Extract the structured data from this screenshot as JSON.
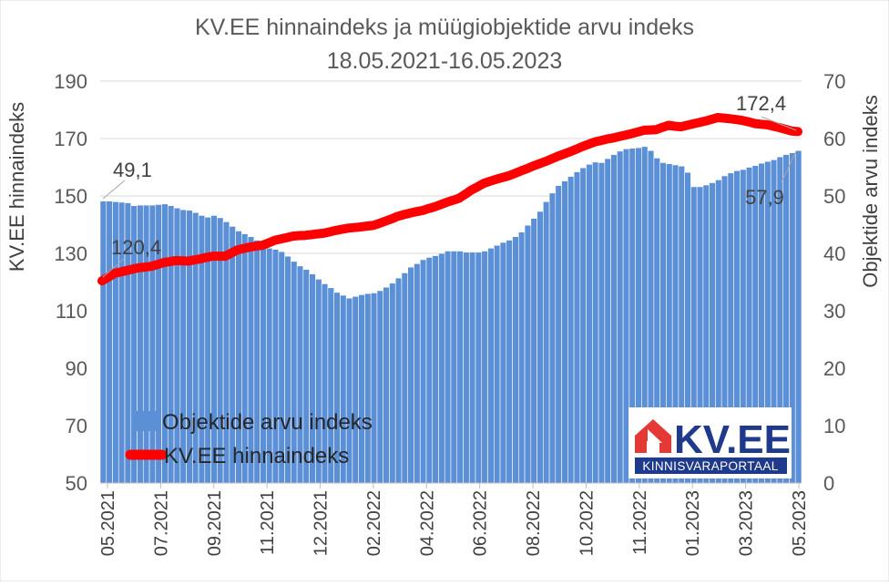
{
  "chart_data": {
    "type": "bar+line",
    "title": "KV.EE hinnaindeks ja müügiobjektide arvu indeks",
    "subtitle": "18.05.2021-16.05.2023",
    "ylabel_left": "KV.EE hinnaindeks",
    "ylabel_right": "Objektide arvu indeks",
    "ylim_left": [
      50,
      190
    ],
    "ylim_right": [
      0,
      70
    ],
    "yticks_left": [
      "50",
      "70",
      "90",
      "110",
      "130",
      "150",
      "170",
      "190"
    ],
    "yticks_right": [
      "0",
      "10",
      "20",
      "30",
      "40",
      "50",
      "60",
      "70"
    ],
    "x_labels": [
      "05.2021",
      "07.2021",
      "09.2021",
      "11.2021",
      "12.2021",
      "02.2022",
      "04.2022",
      "06.2022",
      "08.2022",
      "10.2022",
      "11.2022",
      "01.2023",
      "03.2023",
      "05.2023"
    ],
    "legend": {
      "position": "bottom-left",
      "bars_label": "Objektide arvu indeks",
      "line_label": "KV.EE hinnaindeks"
    },
    "colors": {
      "bars": "#5b8fd6",
      "bar_edge": "#ffffff",
      "line": "#ff0000",
      "grid": "#d9d9d9"
    },
    "annotations": {
      "bars_start": "49,1",
      "line_start": "120,4",
      "line_end": "172,4",
      "bars_end": "57,9"
    },
    "series": [
      {
        "name": "Objektide arvu indeks",
        "axis": "right",
        "type": "bar",
        "values": [
          49.1,
          49.1,
          49.0,
          48.9,
          48.8,
          48.3,
          48.4,
          48.4,
          48.4,
          48.5,
          48.6,
          48.3,
          47.9,
          47.6,
          47.5,
          47.1,
          46.6,
          46.3,
          46.6,
          46.2,
          45.5,
          44.7,
          43.9,
          43.4,
          42.9,
          42.3,
          41.6,
          40.9,
          40.7,
          40.3,
          39.5,
          38.6,
          37.8,
          37.2,
          36.4,
          35.5,
          34.7,
          34.0,
          33.2,
          32.7,
          32.2,
          32.5,
          32.8,
          33.0,
          33.1,
          33.5,
          34.1,
          34.8,
          35.7,
          36.6,
          37.6,
          38.2,
          38.9,
          39.3,
          39.6,
          40.0,
          40.4,
          40.4,
          40.4,
          40.2,
          40.2,
          40.2,
          40.4,
          40.9,
          41.4,
          41.9,
          42.3,
          42.9,
          43.7,
          44.9,
          46.1,
          47.3,
          49.0,
          50.5,
          51.8,
          52.6,
          53.4,
          54.2,
          54.9,
          55.5,
          55.9,
          55.8,
          56.5,
          57.2,
          57.8,
          58.2,
          58.3,
          58.4,
          58.6,
          57.9,
          56.6,
          55.8,
          55.6,
          55.4,
          55.2,
          54.1,
          51.6,
          51.6,
          51.9,
          52.3,
          52.8,
          53.5,
          54.0,
          54.4,
          54.6,
          55.0,
          55.3,
          55.7,
          56.0,
          56.3,
          56.8,
          57.2,
          57.5,
          57.9
        ]
      },
      {
        "name": "KV.EE hinnaindeks",
        "axis": "left",
        "type": "line",
        "values": [
          120.4,
          121.7,
          123.0,
          123.5,
          124.0,
          124.5,
          125.0,
          125.2,
          125.5,
          126.1,
          126.8,
          127.1,
          127.5,
          127.4,
          127.3,
          127.7,
          128.1,
          128.6,
          129.0,
          129.0,
          129.0,
          130.1,
          131.2,
          131.7,
          132.2,
          132.5,
          132.8,
          133.6,
          134.5,
          135.0,
          135.5,
          136.0,
          136.2,
          136.3,
          136.5,
          136.8,
          137.0,
          137.5,
          138.0,
          138.4,
          138.8,
          139.0,
          139.2,
          139.5,
          139.7,
          140.4,
          141.2,
          142.0,
          142.9,
          143.5,
          144.0,
          144.5,
          144.9,
          145.6,
          146.2,
          147.0,
          147.8,
          148.5,
          149.2,
          150.6,
          152.1,
          153.2,
          154.4,
          155.1,
          155.8,
          156.4,
          157.0,
          157.8,
          158.7,
          159.5,
          160.4,
          161.2,
          162.0,
          162.9,
          163.8,
          164.6,
          165.4,
          166.3,
          167.2,
          168.0,
          168.8,
          169.3,
          169.8,
          170.2,
          170.7,
          171.2,
          171.7,
          172.3,
          172.9,
          173.0,
          173.1,
          173.9,
          174.6,
          174.3,
          174.1,
          174.6,
          175.1,
          175.6,
          176.1,
          176.7,
          177.3,
          177.1,
          176.9,
          176.6,
          176.3,
          175.8,
          175.2,
          175.0,
          174.8,
          174.3,
          173.8,
          173.2,
          172.6,
          172.4
        ]
      }
    ]
  },
  "logo": {
    "text": "KV.EE",
    "subtext": "KINNISVARAPORTAAL"
  }
}
